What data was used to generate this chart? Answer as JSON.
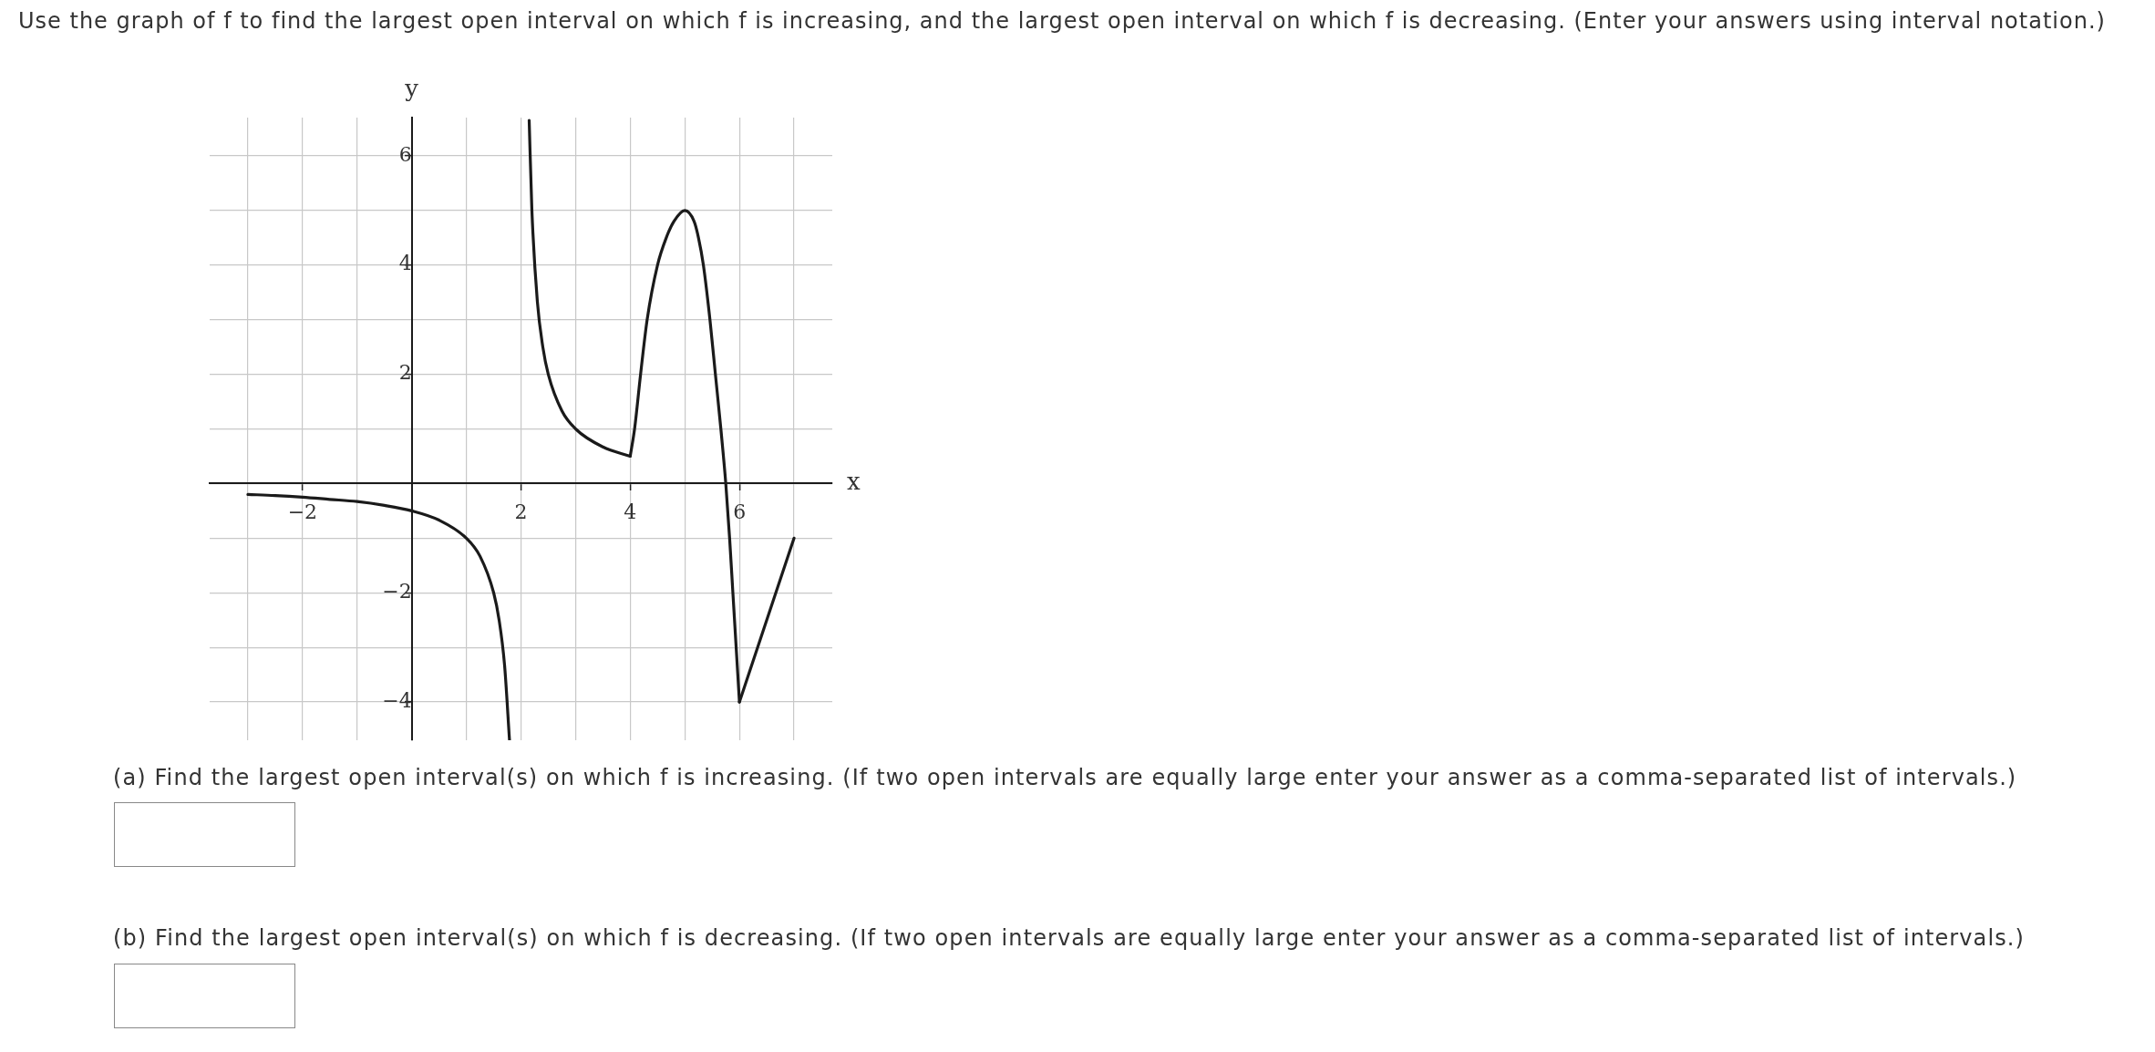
{
  "chart_data": {
    "type": "line",
    "title": "Use the graph of f to find the largest open interval on which f is increasing, and the largest open interval on which f is decreasing. (Enter your answers using interval notation.)",
    "annotations": [
      "(a) Find the largest open interval(s) on which f is increasing. (If two open intervals are equally large enter your answer as a comma-separated list of intervals.)",
      "(b) Find the largest open interval(s) on which f is decreasing. (If two open intervals are equally large enter your answer as a comma-separated list of intervals.)"
    ],
    "xlabel": "x",
    "ylabel": "y",
    "series": [
      {
        "color": "#1a1a1a",
        "x": [
          -3,
          -2.5,
          -2,
          -1.5,
          -1,
          -0.5,
          0,
          0.5,
          1,
          1.25,
          1.5,
          1.6,
          1.7,
          1.79
        ],
        "values": [
          -0.2,
          -0.22,
          -0.25,
          -0.29,
          -0.33,
          -0.4,
          -0.5,
          -0.67,
          -1,
          -1.33,
          -2,
          -2.5,
          -3.33,
          -4.7
        ]
      },
      {
        "color": "#1a1a1a",
        "x": [
          2.15,
          2.2,
          2.3,
          2.4,
          2.5,
          2.75,
          3,
          3.5,
          4
        ],
        "values": [
          6.65,
          5,
          3.33,
          2.5,
          2,
          1.33,
          1,
          0.67,
          0.5
        ]
      },
      {
        "color": "#1a1a1a",
        "x": [
          4,
          4.08,
          4.19,
          4.31,
          4.5,
          4.66,
          4.8,
          5,
          5.17,
          5.25,
          5.34,
          5.46,
          5.56,
          5.66,
          5.75,
          5.82,
          5.88,
          5.94,
          6
        ],
        "values": [
          0.5,
          1,
          2,
          3,
          4,
          4.5,
          4.8,
          5,
          4.8,
          4.5,
          4,
          3,
          2,
          1,
          0,
          -1,
          -2,
          -3,
          -4
        ]
      },
      {
        "color": "#1a1a1a",
        "x": [
          6,
          7
        ],
        "values": [
          -4,
          -1
        ]
      }
    ],
    "xlim": [
      -3.7,
      7.7
    ],
    "ylim": [
      -4.7,
      6.7
    ],
    "xticks": [
      {
        "value": -3,
        "label": null
      },
      {
        "value": -2,
        "label": "−2"
      },
      {
        "value": -1,
        "label": null
      },
      {
        "value": 0,
        "label": null
      },
      {
        "value": 1,
        "label": null
      },
      2,
      {
        "value": 3,
        "label": null
      },
      4,
      {
        "value": 5,
        "label": null
      },
      6,
      {
        "value": 7,
        "label": null
      }
    ],
    "yticks": [
      {
        "value": -4,
        "label": "−4"
      },
      {
        "value": -3,
        "label": null
      },
      {
        "value": -2,
        "label": "−2"
      },
      {
        "value": -1,
        "label": null
      },
      {
        "value": 0,
        "label": null
      },
      {
        "value": 1,
        "label": null
      },
      2,
      {
        "value": 3,
        "label": null
      },
      4,
      {
        "value": 5,
        "label": null
      },
      6
    ],
    "grid": true,
    "line_style": "solid"
  }
}
